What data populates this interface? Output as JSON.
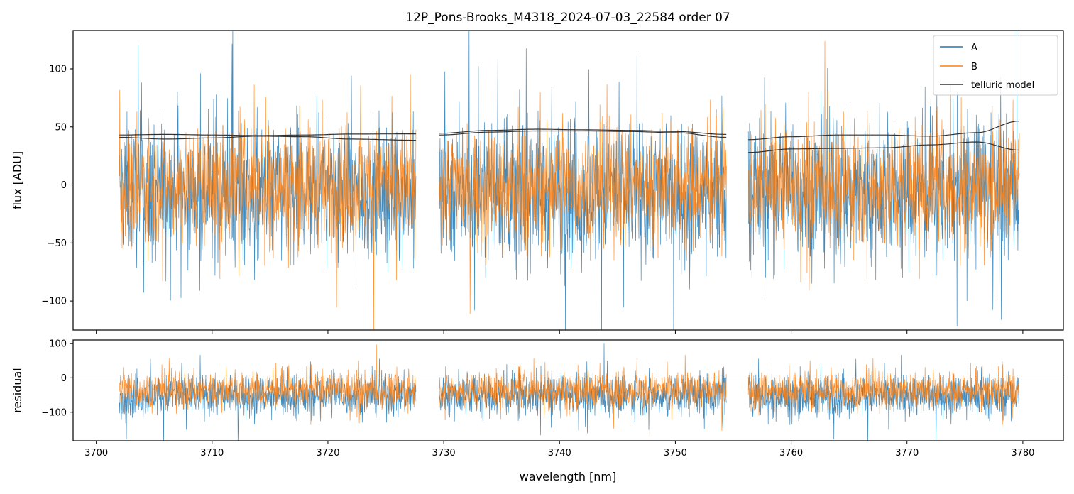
{
  "chart_data": {
    "type": "line",
    "title": "12P_Pons-Brooks_M4318_2024-07-03_22584  order 07",
    "xlabel": "wavelength [nm]",
    "xlim": [
      3698,
      3783.5
    ],
    "x_ticks": [
      3700,
      3710,
      3720,
      3730,
      3740,
      3750,
      3760,
      3770,
      3780
    ],
    "segments": [
      [
        3702.0,
        3727.6
      ],
      [
        3729.6,
        3754.4
      ],
      [
        3756.3,
        3779.7
      ]
    ],
    "panels": [
      {
        "name": "flux",
        "ylabel": "flux [ADU]",
        "ylim": [
          -125,
          133
        ],
        "y_ticks": [
          -100,
          -50,
          0,
          50,
          100
        ],
        "y_tick_labels": [
          "−100",
          "−50",
          "0",
          "50",
          "100"
        ],
        "series": [
          {
            "name": "A",
            "color": "#1f77b4",
            "style": "noisy spectrum",
            "approx_mean": -5,
            "approx_spread": 55
          },
          {
            "name": "B",
            "color": "#ff7f0e",
            "style": "noisy spectrum",
            "approx_mean": 0,
            "approx_spread": 45
          },
          {
            "name": "telluric model",
            "color": "#333333",
            "style": "smooth curves",
            "curves": [
              {
                "x": [
                  3702.0,
                  3706,
                  3710,
                  3714,
                  3718,
                  3722,
                  3727.6
                ],
                "y": [
                  43,
                  43.5,
                  43,
                  42.5,
                  43,
                  43.8,
                  44
                ]
              },
              {
                "x": [
                  3702.0,
                  3706,
                  3710,
                  3714,
                  3718,
                  3722,
                  3727.6
                ],
                "y": [
                  41,
                  39.5,
                  40.5,
                  42,
                  41.5,
                  39.5,
                  38.5
                ]
              },
              {
                "x": [
                  3729.6,
                  3734,
                  3738,
                  3742,
                  3746,
                  3750,
                  3754.4
                ],
                "y": [
                  43,
                  45.5,
                  46.5,
                  46.5,
                  46,
                  45,
                  41
                ]
              },
              {
                "x": [
                  3729.6,
                  3734,
                  3738,
                  3742,
                  3746,
                  3750,
                  3754.4
                ],
                "y": [
                  44.5,
                  47,
                  48,
                  47.5,
                  47,
                  46,
                  43.5
                ]
              },
              {
                "x": [
                  3756.3,
                  3760,
                  3764,
                  3768,
                  3772,
                  3776,
                  3779.7
                ],
                "y": [
                  39,
                  41.5,
                  43,
                  43,
                  42,
                  45,
                  55
                ]
              },
              {
                "x": [
                  3756.3,
                  3760,
                  3764,
                  3768,
                  3772,
                  3776,
                  3779.7
                ],
                "y": [
                  28,
                  31,
                  31.5,
                  32,
                  34.5,
                  37,
                  30
                ]
              }
            ]
          }
        ]
      },
      {
        "name": "residual",
        "ylabel": "residual",
        "ylim": [
          -183,
          110
        ],
        "y_ticks": [
          -100,
          0,
          100
        ],
        "y_tick_labels": [
          "−100",
          "0",
          "100"
        ],
        "zero_line": true,
        "series": [
          {
            "name": "A",
            "color": "#1f77b4",
            "style": "noisy residual",
            "approx_mean": -50,
            "approx_spread": 55
          },
          {
            "name": "B",
            "color": "#ff7f0e",
            "style": "noisy residual",
            "approx_mean": -35,
            "approx_spread": 48
          }
        ]
      }
    ],
    "legend": {
      "placement": "top-right",
      "entries": [
        "A",
        "B",
        "telluric model"
      ]
    },
    "grid": false
  }
}
